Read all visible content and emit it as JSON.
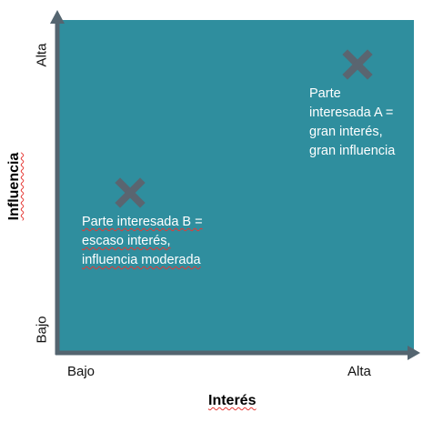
{
  "axes": {
    "x_title": "Interés",
    "y_title": "Influencia",
    "x_low": "Bajo",
    "x_high": "Alta",
    "y_low": "Bajo",
    "y_high": "Alta"
  },
  "stakeholders": [
    {
      "lines": [
        "Parte",
        "interesada A =",
        "gran interés,",
        "gran influencia"
      ]
    },
    {
      "lines": [
        "Parte interesada B =",
        "escaso interés,",
        "influencia moderada"
      ]
    }
  ],
  "colors": {
    "background": "#2f8e9e",
    "axis": "#546570",
    "marker": "#5a6570",
    "text": "#ffffff"
  },
  "icons": {
    "marker": "cross-mark-icon"
  }
}
